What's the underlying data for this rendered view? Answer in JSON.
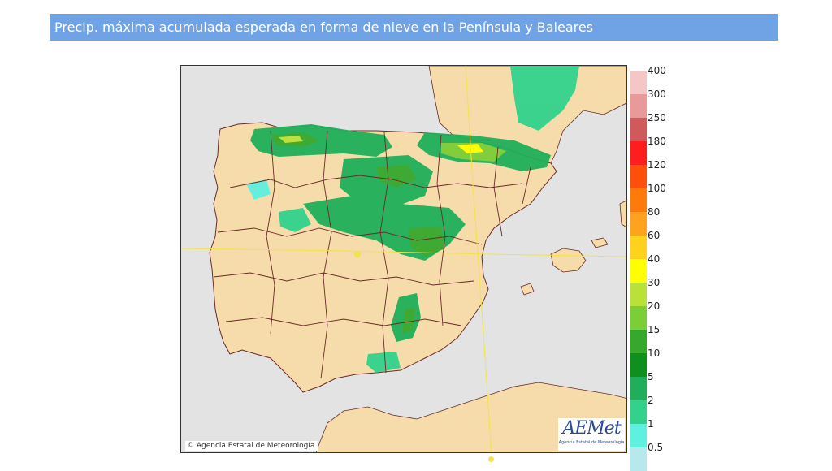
{
  "header": {
    "title": "Precip. máxima acumulada esperada en forma de nieve en la Península y Baleares"
  },
  "map": {
    "credit": "Agencia Estatal de Meteorología",
    "logo": {
      "name": "AEMet",
      "subtitle": "Agencia Estatal de Meteorología"
    }
  },
  "legend": {
    "labels": [
      "400",
      "300",
      "250",
      "180",
      "120",
      "100",
      "80",
      "60",
      "40",
      "30",
      "20",
      "15",
      "10",
      "5",
      "2",
      "1",
      "0.5"
    ],
    "colors": [
      "#f4c6c6",
      "#e89a9a",
      "#d0595b",
      "#ff1e1e",
      "#ff4f0a",
      "#ff7a0a",
      "#ffa31e",
      "#ffd21e",
      "#ffff00",
      "#b8e13a",
      "#7ccd36",
      "#36a82d",
      "#0f8f1e",
      "#1faf5a",
      "#32d28c",
      "#5ff0e0",
      "#b6e8ec"
    ]
  }
}
